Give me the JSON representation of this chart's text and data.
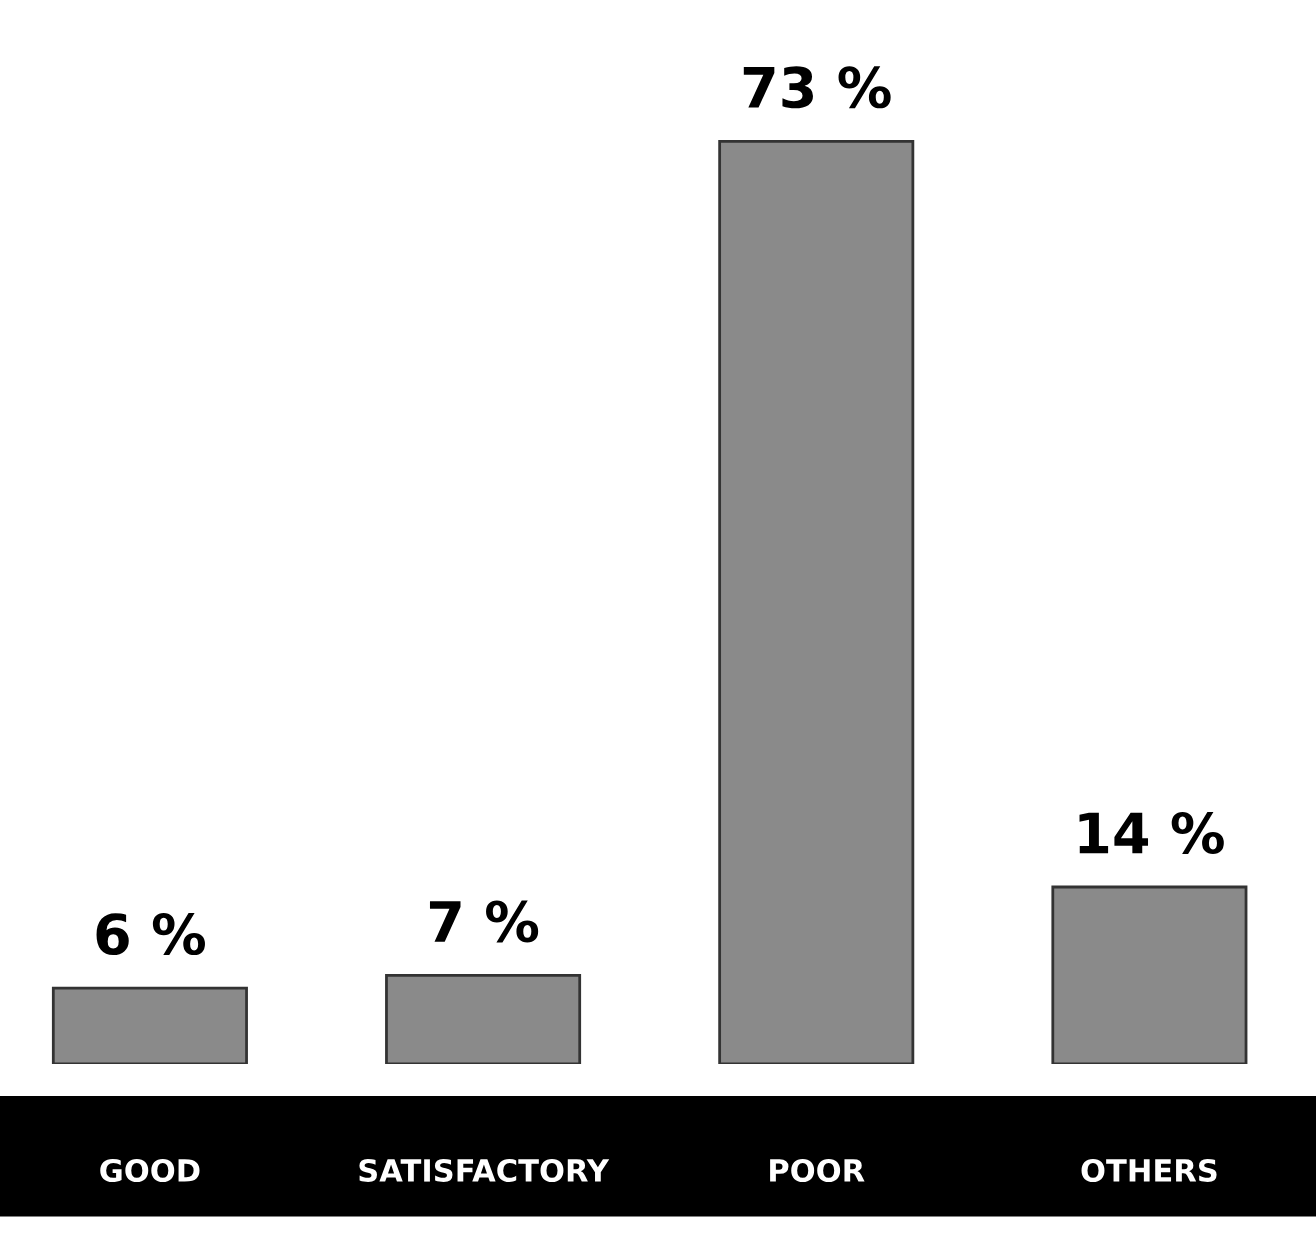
{
  "chart_data": {
    "type": "bar",
    "categories": [
      "GOOD",
      "SATISFACTORY",
      "POOR",
      "OTHERS"
    ],
    "values": [
      6,
      7,
      73,
      14
    ],
    "value_labels": [
      "6 %",
      "7 %",
      "73 %",
      "14 %"
    ],
    "color": "#8a8a8a",
    "grid": false,
    "legend": false
  }
}
